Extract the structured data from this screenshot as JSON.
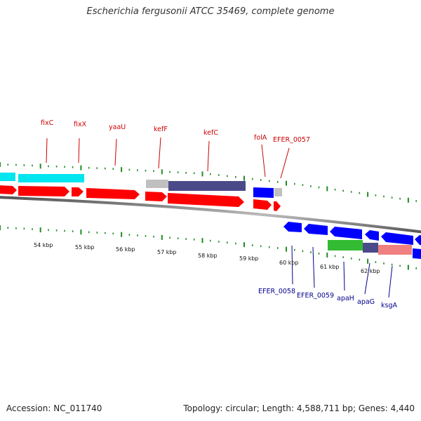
{
  "title": "Escherichia fergusonii ATCC 35469, complete genome",
  "footer": {
    "accession": "Accession: NC_011740",
    "stats": "Topology: circular; Length: 4,588,711 bp; Genes: 4,440"
  },
  "colors": {
    "forward_gene": "#ff0000",
    "reverse_gene": "#0000ff",
    "cyan_feature": "#00e5ee",
    "gray_feature": "#c0c0c0",
    "navy_feature": "#4a4a8a",
    "green_feature": "#33bb33",
    "pink_feature": "#f08080",
    "tick": "#228b22"
  },
  "top_labels": [
    "fixC",
    "fixX",
    "yaaU",
    "kefF",
    "kefC",
    "folA",
    "EFER_0057"
  ],
  "bottom_labels": [
    "EFER_0058",
    "EFER_0059",
    "apaH",
    "apaG",
    "ksgA"
  ],
  "scale_labels": [
    "54 kbp",
    "55 kbp",
    "56 kbp",
    "57 kbp",
    "58 kbp",
    "59 kbp",
    "60 kbp",
    "61 kbp",
    "62 kbp"
  ]
}
